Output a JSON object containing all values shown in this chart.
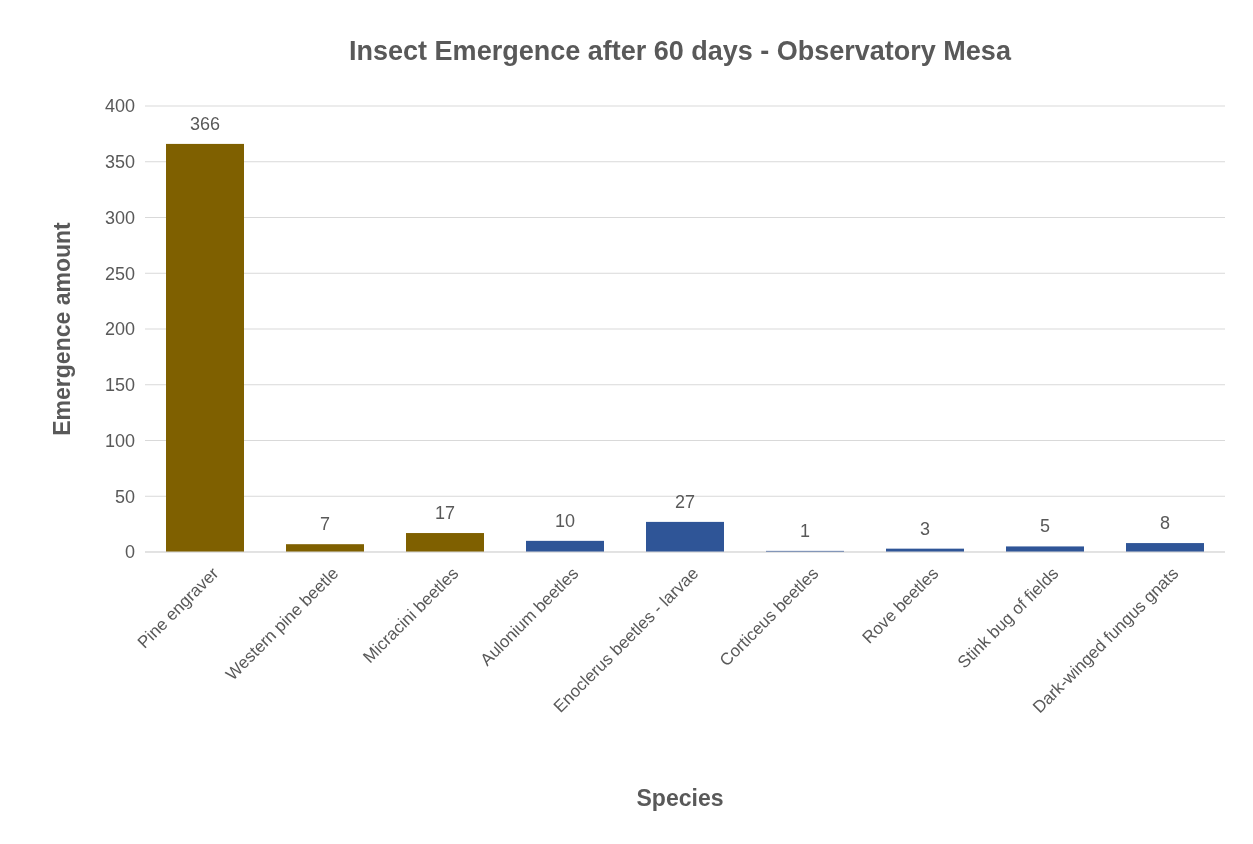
{
  "chart_data": {
    "type": "bar",
    "title": "Insect Emergence after 60 days - Observatory Mesa",
    "xlabel": "Species",
    "ylabel": "Emergence amount",
    "categories": [
      "Pine engraver",
      "Western pine beetle",
      "Micracini beetles",
      "Aulonium beetles",
      "Enoclerus beetles - larvae",
      "Corticeus beetles",
      "Rove beetles",
      "Stink bug of fields",
      "Dark-winged fungus gnats"
    ],
    "values": [
      366,
      7,
      17,
      10,
      27,
      1,
      3,
      5,
      8
    ],
    "colors": [
      "#7f6000",
      "#7f6000",
      "#7f6000",
      "#2f5597",
      "#2f5597",
      "#2f5597",
      "#2f5597",
      "#2f5597",
      "#2f5597"
    ],
    "ylim": [
      0,
      400
    ],
    "yticks": [
      0,
      50,
      100,
      150,
      200,
      250,
      300,
      350,
      400
    ],
    "grid": "y",
    "data_labels": true
  }
}
